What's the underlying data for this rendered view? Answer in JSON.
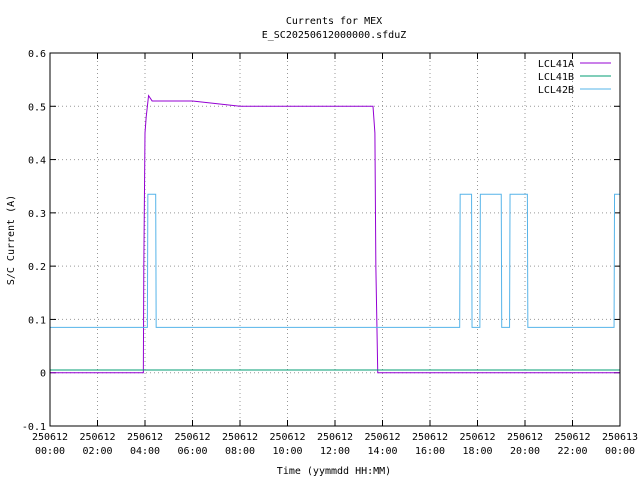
{
  "chart_data": {
    "type": "line",
    "title": "Currents for MEX",
    "subtitle": "E_SC20250612000000.sfduZ",
    "xlabel": "Time (yymmdd HH:MM)",
    "ylabel": "S/C Current (A)",
    "xlim": [
      0,
      24
    ],
    "ylim": [
      -0.1,
      0.6
    ],
    "grid": true,
    "legend_position": "top-right",
    "x_ticks": [
      {
        "date": "250612",
        "time": "00:00"
      },
      {
        "date": "250612",
        "time": "02:00"
      },
      {
        "date": "250612",
        "time": "04:00"
      },
      {
        "date": "250612",
        "time": "06:00"
      },
      {
        "date": "250612",
        "time": "08:00"
      },
      {
        "date": "250612",
        "time": "10:00"
      },
      {
        "date": "250612",
        "time": "12:00"
      },
      {
        "date": "250612",
        "time": "14:00"
      },
      {
        "date": "250612",
        "time": "16:00"
      },
      {
        "date": "250612",
        "time": "18:00"
      },
      {
        "date": "250612",
        "time": "20:00"
      },
      {
        "date": "250612",
        "time": "22:00"
      },
      {
        "date": "250613",
        "time": "00:00"
      }
    ],
    "y_ticks": [
      "-0.1",
      "0",
      "0.1",
      "0.2",
      "0.3",
      "0.4",
      "0.5",
      "0.6"
    ],
    "series": [
      {
        "name": "LCL41A",
        "color": "#9400d3",
        "x": [
          0,
          3.93,
          3.95,
          4.0,
          4.05,
          4.1,
          4.15,
          4.3,
          6,
          8,
          10,
          12,
          13.6,
          13.68,
          13.72,
          13.8,
          14.0,
          16,
          18,
          20,
          22,
          24
        ],
        "y": [
          0,
          0,
          0.2,
          0.45,
          0.48,
          0.5,
          0.52,
          0.51,
          0.51,
          0.5,
          0.5,
          0.5,
          0.5,
          0.45,
          0.2,
          0,
          0,
          0,
          0,
          0,
          0,
          0
        ]
      },
      {
        "name": "LCL41B",
        "color": "#009e73",
        "x": [
          0,
          24
        ],
        "y": [
          0.005,
          0.005
        ]
      },
      {
        "name": "LCL42B",
        "color": "#56b4e9",
        "x": [
          0,
          4.1,
          4.12,
          4.45,
          4.47,
          17.25,
          17.27,
          17.75,
          17.77,
          18.1,
          18.12,
          19.0,
          19.02,
          19.35,
          19.37,
          20.1,
          20.12,
          23.75,
          23.77,
          24
        ],
        "y": [
          0.085,
          0.085,
          0.335,
          0.335,
          0.085,
          0.085,
          0.335,
          0.335,
          0.085,
          0.085,
          0.335,
          0.335,
          0.085,
          0.085,
          0.335,
          0.335,
          0.085,
          0.085,
          0.335,
          0.335
        ]
      }
    ]
  }
}
